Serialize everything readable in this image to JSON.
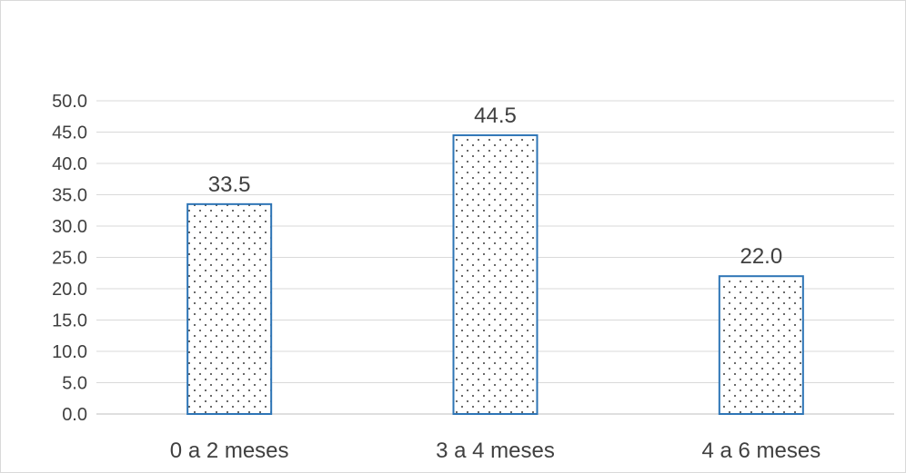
{
  "chart_data": {
    "type": "bar",
    "categories": [
      "0 a 2 meses",
      "3 a 4 meses",
      "4 a 6 meses"
    ],
    "values": [
      33.5,
      44.5,
      22.0
    ],
    "data_labels": [
      "33.5",
      "44.5",
      "22.0"
    ],
    "title": "",
    "xlabel": "",
    "ylabel": "",
    "ylim": [
      0,
      50
    ],
    "yticks": [
      "0.0",
      "5.0",
      "10.0",
      "15.0",
      "20.0",
      "25.0",
      "30.0",
      "35.0",
      "40.0",
      "45.0",
      "50.0"
    ],
    "grid": true,
    "legend": "none",
    "bar_fill": "dotted pattern",
    "bar_border_color": "#2e75b6",
    "dot_color": "#000000",
    "text_color": "#404040",
    "grid_color": "#d9d9d9"
  }
}
